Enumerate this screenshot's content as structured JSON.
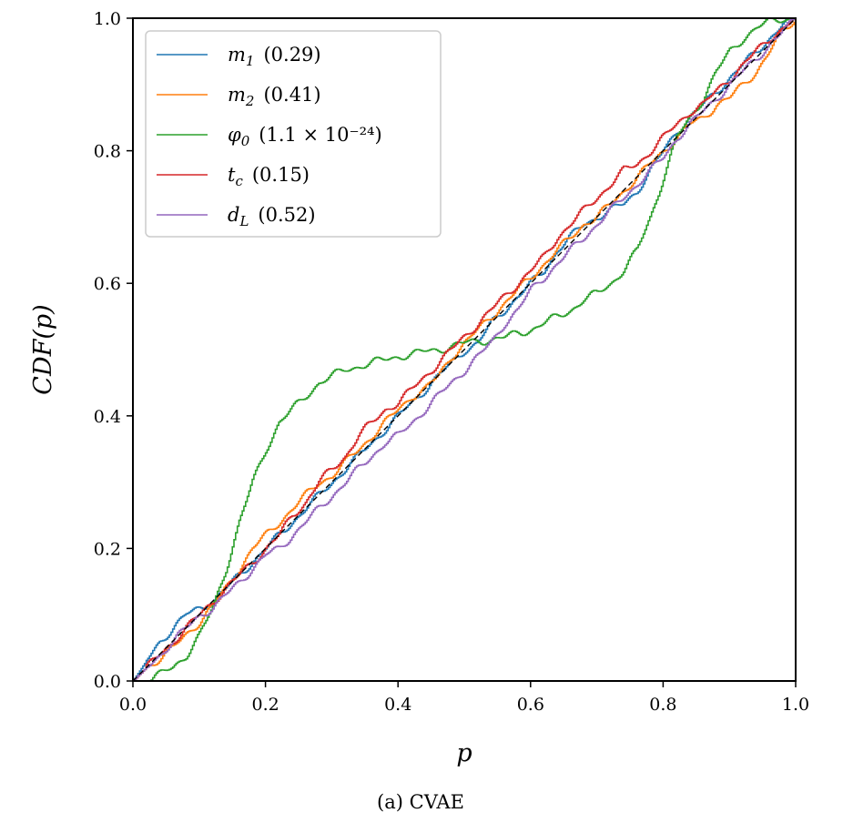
{
  "chart_data": {
    "type": "line",
    "caption": "(a) CVAE",
    "xlabel": "p",
    "ylabel": "CDF(p)",
    "xlim": [
      0.0,
      1.0
    ],
    "ylim": [
      0.0,
      1.0
    ],
    "xticks": [
      "0.0",
      "0.2",
      "0.4",
      "0.6",
      "0.8",
      "1.0"
    ],
    "yticks": [
      "0.0",
      "0.2",
      "0.4",
      "0.6",
      "0.8",
      "1.0"
    ],
    "grid": false,
    "legend_position": "top-left",
    "reference_line": {
      "name": "diagonal",
      "style": "dashed",
      "color": "#000000",
      "x": [
        0,
        1
      ],
      "y": [
        0,
        1
      ]
    },
    "series": [
      {
        "name": "m",
        "subscript": "1",
        "value_label": "(0.29)",
        "color": "#1f77b4",
        "x": [
          0,
          0.02,
          0.04,
          0.06,
          0.08,
          0.1,
          0.12,
          0.14,
          0.16,
          0.18,
          0.2,
          0.22,
          0.24,
          0.26,
          0.28,
          0.3,
          0.32,
          0.34,
          0.36,
          0.38,
          0.4,
          0.42,
          0.44,
          0.46,
          0.48,
          0.5,
          0.52,
          0.54,
          0.56,
          0.58,
          0.6,
          0.62,
          0.64,
          0.66,
          0.68,
          0.7,
          0.72,
          0.74,
          0.76,
          0.78,
          0.8,
          0.82,
          0.84,
          0.86,
          0.88,
          0.9,
          0.92,
          0.94,
          0.96,
          0.98,
          1.0
        ],
        "y": [
          0,
          0.03,
          0.06,
          0.08,
          0.1,
          0.11,
          0.12,
          0.14,
          0.16,
          0.18,
          0.2,
          0.22,
          0.24,
          0.26,
          0.28,
          0.3,
          0.32,
          0.34,
          0.36,
          0.38,
          0.4,
          0.42,
          0.44,
          0.46,
          0.48,
          0.5,
          0.51,
          0.54,
          0.56,
          0.58,
          0.6,
          0.62,
          0.65,
          0.67,
          0.69,
          0.7,
          0.71,
          0.72,
          0.74,
          0.77,
          0.8,
          0.83,
          0.85,
          0.87,
          0.89,
          0.91,
          0.93,
          0.95,
          0.97,
          0.99,
          1.0
        ]
      },
      {
        "name": "m",
        "subscript": "2",
        "value_label": "(0.41)",
        "color": "#ff7f0e",
        "x": [
          0,
          0.02,
          0.04,
          0.06,
          0.08,
          0.1,
          0.12,
          0.14,
          0.16,
          0.18,
          0.2,
          0.22,
          0.24,
          0.26,
          0.28,
          0.3,
          0.32,
          0.34,
          0.36,
          0.38,
          0.4,
          0.42,
          0.44,
          0.46,
          0.48,
          0.5,
          0.52,
          0.54,
          0.56,
          0.58,
          0.6,
          0.62,
          0.64,
          0.66,
          0.68,
          0.7,
          0.72,
          0.74,
          0.76,
          0.78,
          0.8,
          0.82,
          0.84,
          0.86,
          0.88,
          0.9,
          0.92,
          0.94,
          0.96,
          0.98,
          1.0
        ],
        "y": [
          0,
          0.02,
          0.035,
          0.05,
          0.07,
          0.09,
          0.115,
          0.14,
          0.17,
          0.2,
          0.22,
          0.24,
          0.26,
          0.28,
          0.3,
          0.31,
          0.33,
          0.35,
          0.37,
          0.39,
          0.41,
          0.43,
          0.44,
          0.46,
          0.49,
          0.51,
          0.53,
          0.55,
          0.57,
          0.59,
          0.61,
          0.63,
          0.65,
          0.67,
          0.69,
          0.7,
          0.72,
          0.74,
          0.76,
          0.78,
          0.8,
          0.82,
          0.84,
          0.85,
          0.87,
          0.88,
          0.9,
          0.92,
          0.95,
          0.98,
          1.0
        ]
      },
      {
        "name": "φ",
        "subscript": "0",
        "value_label": "(1.1 × 10⁻²⁴)",
        "color": "#2ca02c",
        "x": [
          0,
          0.02,
          0.04,
          0.06,
          0.08,
          0.1,
          0.12,
          0.14,
          0.16,
          0.18,
          0.2,
          0.22,
          0.24,
          0.26,
          0.28,
          0.3,
          0.32,
          0.34,
          0.36,
          0.38,
          0.4,
          0.42,
          0.44,
          0.46,
          0.48,
          0.5,
          0.52,
          0.54,
          0.56,
          0.58,
          0.6,
          0.62,
          0.64,
          0.66,
          0.68,
          0.7,
          0.72,
          0.74,
          0.76,
          0.78,
          0.8,
          0.82,
          0.84,
          0.86,
          0.88,
          0.9,
          0.92,
          0.94,
          0.96,
          0.98,
          1.0
        ],
        "y": [
          0,
          0.0,
          0.01,
          0.02,
          0.04,
          0.07,
          0.11,
          0.17,
          0.24,
          0.3,
          0.35,
          0.39,
          0.41,
          0.43,
          0.45,
          0.46,
          0.47,
          0.475,
          0.48,
          0.485,
          0.49,
          0.493,
          0.497,
          0.5,
          0.505,
          0.51,
          0.513,
          0.515,
          0.518,
          0.525,
          0.53,
          0.54,
          0.55,
          0.56,
          0.575,
          0.585,
          0.6,
          0.62,
          0.65,
          0.7,
          0.76,
          0.82,
          0.85,
          0.88,
          0.92,
          0.95,
          0.97,
          0.985,
          0.995,
          1.0,
          1.0
        ]
      },
      {
        "name": "t",
        "subscript": "c",
        "value_label": "(0.15)",
        "color": "#d62728",
        "x": [
          0,
          0.02,
          0.04,
          0.06,
          0.08,
          0.1,
          0.12,
          0.14,
          0.16,
          0.18,
          0.2,
          0.22,
          0.24,
          0.26,
          0.28,
          0.3,
          0.32,
          0.34,
          0.36,
          0.38,
          0.4,
          0.42,
          0.44,
          0.46,
          0.48,
          0.5,
          0.52,
          0.54,
          0.56,
          0.58,
          0.6,
          0.62,
          0.64,
          0.66,
          0.68,
          0.7,
          0.72,
          0.74,
          0.76,
          0.78,
          0.8,
          0.82,
          0.84,
          0.86,
          0.88,
          0.9,
          0.92,
          0.94,
          0.96,
          0.98,
          1.0
        ],
        "y": [
          0,
          0.02,
          0.04,
          0.06,
          0.08,
          0.1,
          0.12,
          0.14,
          0.16,
          0.18,
          0.2,
          0.22,
          0.25,
          0.27,
          0.3,
          0.32,
          0.34,
          0.37,
          0.39,
          0.41,
          0.42,
          0.44,
          0.46,
          0.48,
          0.5,
          0.52,
          0.54,
          0.56,
          0.58,
          0.6,
          0.62,
          0.64,
          0.67,
          0.69,
          0.71,
          0.73,
          0.75,
          0.77,
          0.78,
          0.8,
          0.82,
          0.84,
          0.86,
          0.87,
          0.89,
          0.91,
          0.93,
          0.95,
          0.97,
          0.985,
          1.0
        ]
      },
      {
        "name": "d",
        "subscript": "L",
        "value_label": "(0.52)",
        "color": "#9467bd",
        "x": [
          0,
          0.02,
          0.04,
          0.06,
          0.08,
          0.1,
          0.12,
          0.14,
          0.16,
          0.18,
          0.2,
          0.22,
          0.24,
          0.26,
          0.28,
          0.3,
          0.32,
          0.34,
          0.36,
          0.38,
          0.4,
          0.42,
          0.44,
          0.46,
          0.48,
          0.5,
          0.52,
          0.54,
          0.56,
          0.58,
          0.6,
          0.62,
          0.64,
          0.66,
          0.68,
          0.7,
          0.72,
          0.74,
          0.76,
          0.78,
          0.8,
          0.82,
          0.84,
          0.86,
          0.88,
          0.9,
          0.92,
          0.94,
          0.96,
          0.98,
          1.0
        ],
        "y": [
          0,
          0.02,
          0.04,
          0.06,
          0.08,
          0.1,
          0.11,
          0.13,
          0.15,
          0.17,
          0.19,
          0.2,
          0.22,
          0.24,
          0.26,
          0.28,
          0.3,
          0.32,
          0.34,
          0.36,
          0.37,
          0.39,
          0.41,
          0.43,
          0.45,
          0.47,
          0.49,
          0.51,
          0.54,
          0.56,
          0.59,
          0.61,
          0.63,
          0.65,
          0.67,
          0.69,
          0.71,
          0.73,
          0.75,
          0.77,
          0.79,
          0.82,
          0.84,
          0.86,
          0.88,
          0.9,
          0.92,
          0.94,
          0.96,
          0.98,
          1.0
        ]
      }
    ]
  }
}
